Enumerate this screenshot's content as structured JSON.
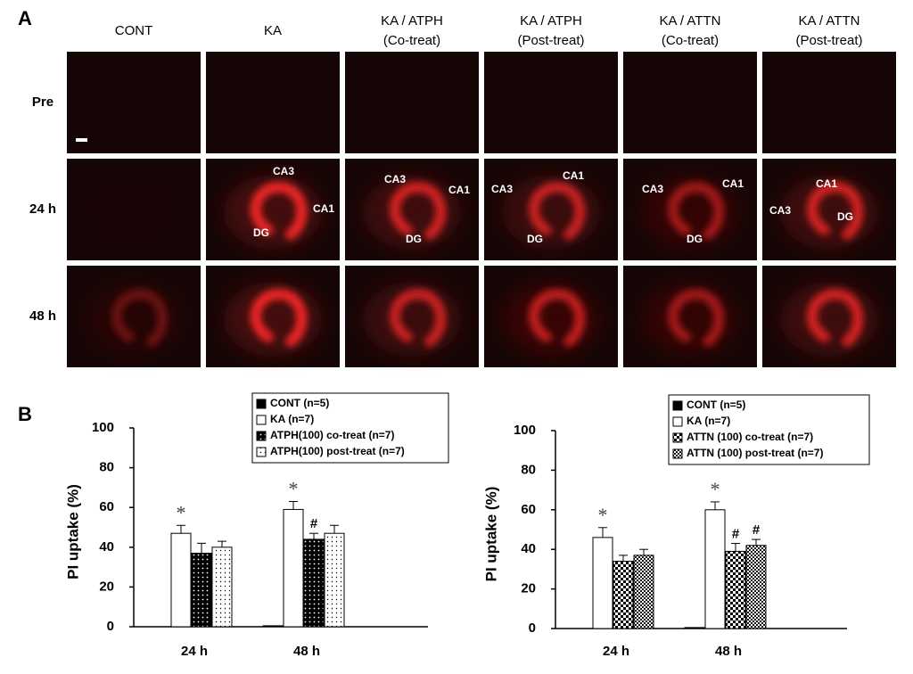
{
  "panel_a": {
    "label": "A",
    "columns": [
      [
        "CONT"
      ],
      [
        "KA"
      ],
      [
        "KA / ATPH",
        "(Co-treat)"
      ],
      [
        "KA / ATPH",
        "(Post-treat)"
      ],
      [
        "KA / ATTN",
        "(Co-treat)"
      ],
      [
        "KA / ATTN",
        "(Post-treat)"
      ]
    ],
    "rows": [
      "Pre",
      "24 h",
      "48 h"
    ],
    "region_labels": [
      [],
      [
        "CA3",
        "CA1",
        "DG"
      ],
      [
        "CA3",
        "CA1",
        "DG"
      ],
      [
        "CA3",
        "CA1",
        "DG"
      ],
      [
        "CA3",
        "CA1",
        "DG"
      ],
      [
        "CA1",
        "CA3",
        "DG"
      ]
    ]
  },
  "panel_b": {
    "label": "B"
  },
  "chart_data": [
    {
      "type": "bar",
      "y_label": "PI uptake (%)",
      "categories": [
        "24 h",
        "48 h"
      ],
      "ylim": [
        0,
        100
      ],
      "yticks": [
        0,
        20,
        40,
        60,
        80,
        100
      ],
      "series": [
        {
          "name": "CONT (n=5)",
          "color": "#000000",
          "pattern": "solid",
          "values": [
            0,
            0.5
          ],
          "errors": [
            0,
            0
          ]
        },
        {
          "name": "KA (n=7)",
          "color": "#ffffff",
          "pattern": "solid",
          "values": [
            47,
            59
          ],
          "errors": [
            4,
            4
          ],
          "annotations": [
            "*",
            "*"
          ]
        },
        {
          "name": "ATPH(100) co-treat (n=7)",
          "color": "#000000",
          "pattern": "dots-dark",
          "values": [
            37,
            44
          ],
          "errors": [
            5,
            3
          ],
          "annotations": [
            null,
            "#"
          ]
        },
        {
          "name": "ATPH(100) post-treat (n=7)",
          "color": "#ffffff",
          "pattern": "dots-light",
          "values": [
            40,
            47
          ],
          "errors": [
            3,
            4
          ]
        }
      ]
    },
    {
      "type": "bar",
      "y_label": "PI uptake (%)",
      "categories": [
        "24 h",
        "48 h"
      ],
      "ylim": [
        0,
        100
      ],
      "yticks": [
        0,
        20,
        40,
        60,
        80,
        100
      ],
      "series": [
        {
          "name": "CONT (n=5)",
          "color": "#000000",
          "pattern": "solid",
          "values": [
            0,
            0.5
          ],
          "errors": [
            0,
            0
          ]
        },
        {
          "name": "KA (n=7)",
          "color": "#ffffff",
          "pattern": "solid",
          "values": [
            46,
            60
          ],
          "errors": [
            5,
            4
          ],
          "annotations": [
            "*",
            "*"
          ]
        },
        {
          "name": "ATTN (100) co-treat (n=7)",
          "color": "#000000",
          "pattern": "checker",
          "values": [
            34,
            39
          ],
          "errors": [
            3,
            4
          ],
          "annotations": [
            null,
            "#"
          ]
        },
        {
          "name": "ATTN (100) post-treat (n=7)",
          "color": "#ffffff",
          "pattern": "checker-fine",
          "values": [
            37,
            42
          ],
          "errors": [
            3,
            3
          ],
          "annotations": [
            null,
            "#"
          ]
        }
      ]
    }
  ]
}
